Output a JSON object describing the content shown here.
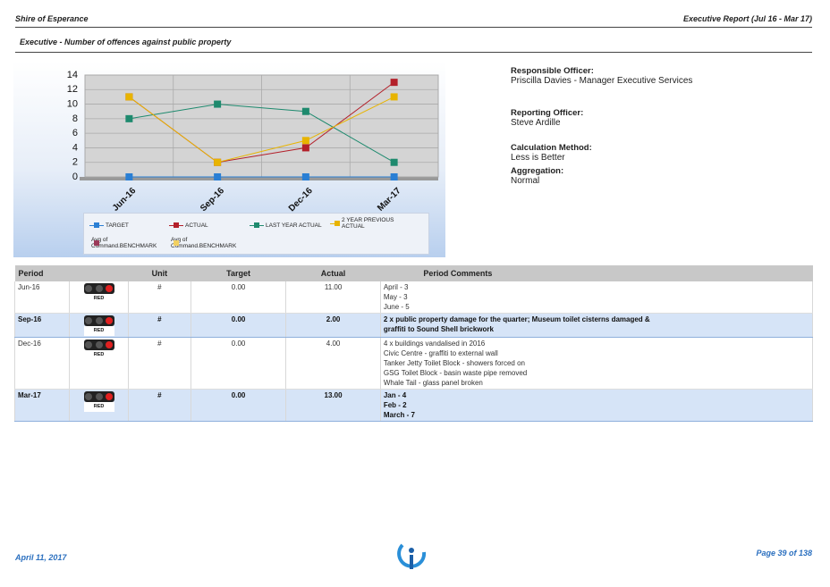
{
  "header": {
    "left": "Shire of Esperance",
    "right": "Executive Report (Jul 16 - Mar 17)",
    "subtitle": "Executive - Number of offences against public property"
  },
  "chart_data": {
    "type": "line",
    "categories": [
      "Jun-16",
      "Sep-16",
      "Dec-16",
      "Mar-17"
    ],
    "ylim": [
      0,
      14
    ],
    "yticks": [
      0,
      2,
      4,
      6,
      8,
      10,
      12,
      14
    ],
    "grid": true,
    "series": [
      {
        "name": "TARGET",
        "color": "#2a7fd4",
        "values": [
          0,
          0,
          0,
          0
        ]
      },
      {
        "name": "ACTUAL",
        "color": "#b3202a",
        "values": [
          11,
          2,
          4,
          13
        ]
      },
      {
        "name": "LAST YEAR ACTUAL",
        "color": "#1e8a6e",
        "values": [
          8,
          10,
          9,
          2
        ]
      },
      {
        "name": "2 YEAR PREVIOUS ACTUAL",
        "color": "#e8b400",
        "values": [
          11,
          2,
          5,
          11
        ]
      },
      {
        "name": "Avg of Command.BENCHMARK",
        "color": "#9b3a5a",
        "values": [
          null,
          null,
          null,
          null
        ]
      },
      {
        "name": "Avg of Command.BENCHMARK",
        "color": "#f2d060",
        "values": [
          null,
          null,
          null,
          null
        ]
      }
    ]
  },
  "info": [
    {
      "label": "Responsible Officer:",
      "value": "Priscilla Davies - Manager Executive Services"
    },
    {
      "label": "Reporting Officer:",
      "value": "Steve Ardille"
    },
    {
      "label": "Calculation Method:",
      "value": "Less is Better"
    },
    {
      "label": "Aggregation:",
      "value": "Normal"
    }
  ],
  "table": {
    "columns": [
      "Period",
      "Unit",
      "Target",
      "Actual",
      "Period Comments"
    ],
    "rows": [
      {
        "period": "Jun-16",
        "status": "RED",
        "unit": "#",
        "target": "0.00",
        "actual": "11.00",
        "comments": [
          "April - 3",
          "May - 3",
          "June - 5"
        ]
      },
      {
        "period": "Sep-16",
        "status": "RED",
        "unit": "#",
        "target": "0.00",
        "actual": "2.00",
        "comments": [
          "2 x public property damage for the quarter; Museum toilet cisterns damaged &",
          "graffiti to Sound Shell brickwork"
        ]
      },
      {
        "period": "Dec-16",
        "status": "RED",
        "unit": "#",
        "target": "0.00",
        "actual": "4.00",
        "comments": [
          "4 x buildings vandalised in 2016",
          "Civic Centre - graffiti to external wall",
          "Tanker Jetty Toilet Block - showers forced on",
          "GSG Toilet Block - basin waste pipe removed",
          "Whale Tail - glass panel broken"
        ]
      },
      {
        "period": "Mar-17",
        "status": "RED",
        "unit": "#",
        "target": "0.00",
        "actual": "13.00",
        "comments": [
          "Jan - 4",
          "Feb - 2",
          "March - 7"
        ]
      }
    ]
  },
  "footer": {
    "date": "April 11, 2017",
    "page": "Page 39 of 138"
  }
}
